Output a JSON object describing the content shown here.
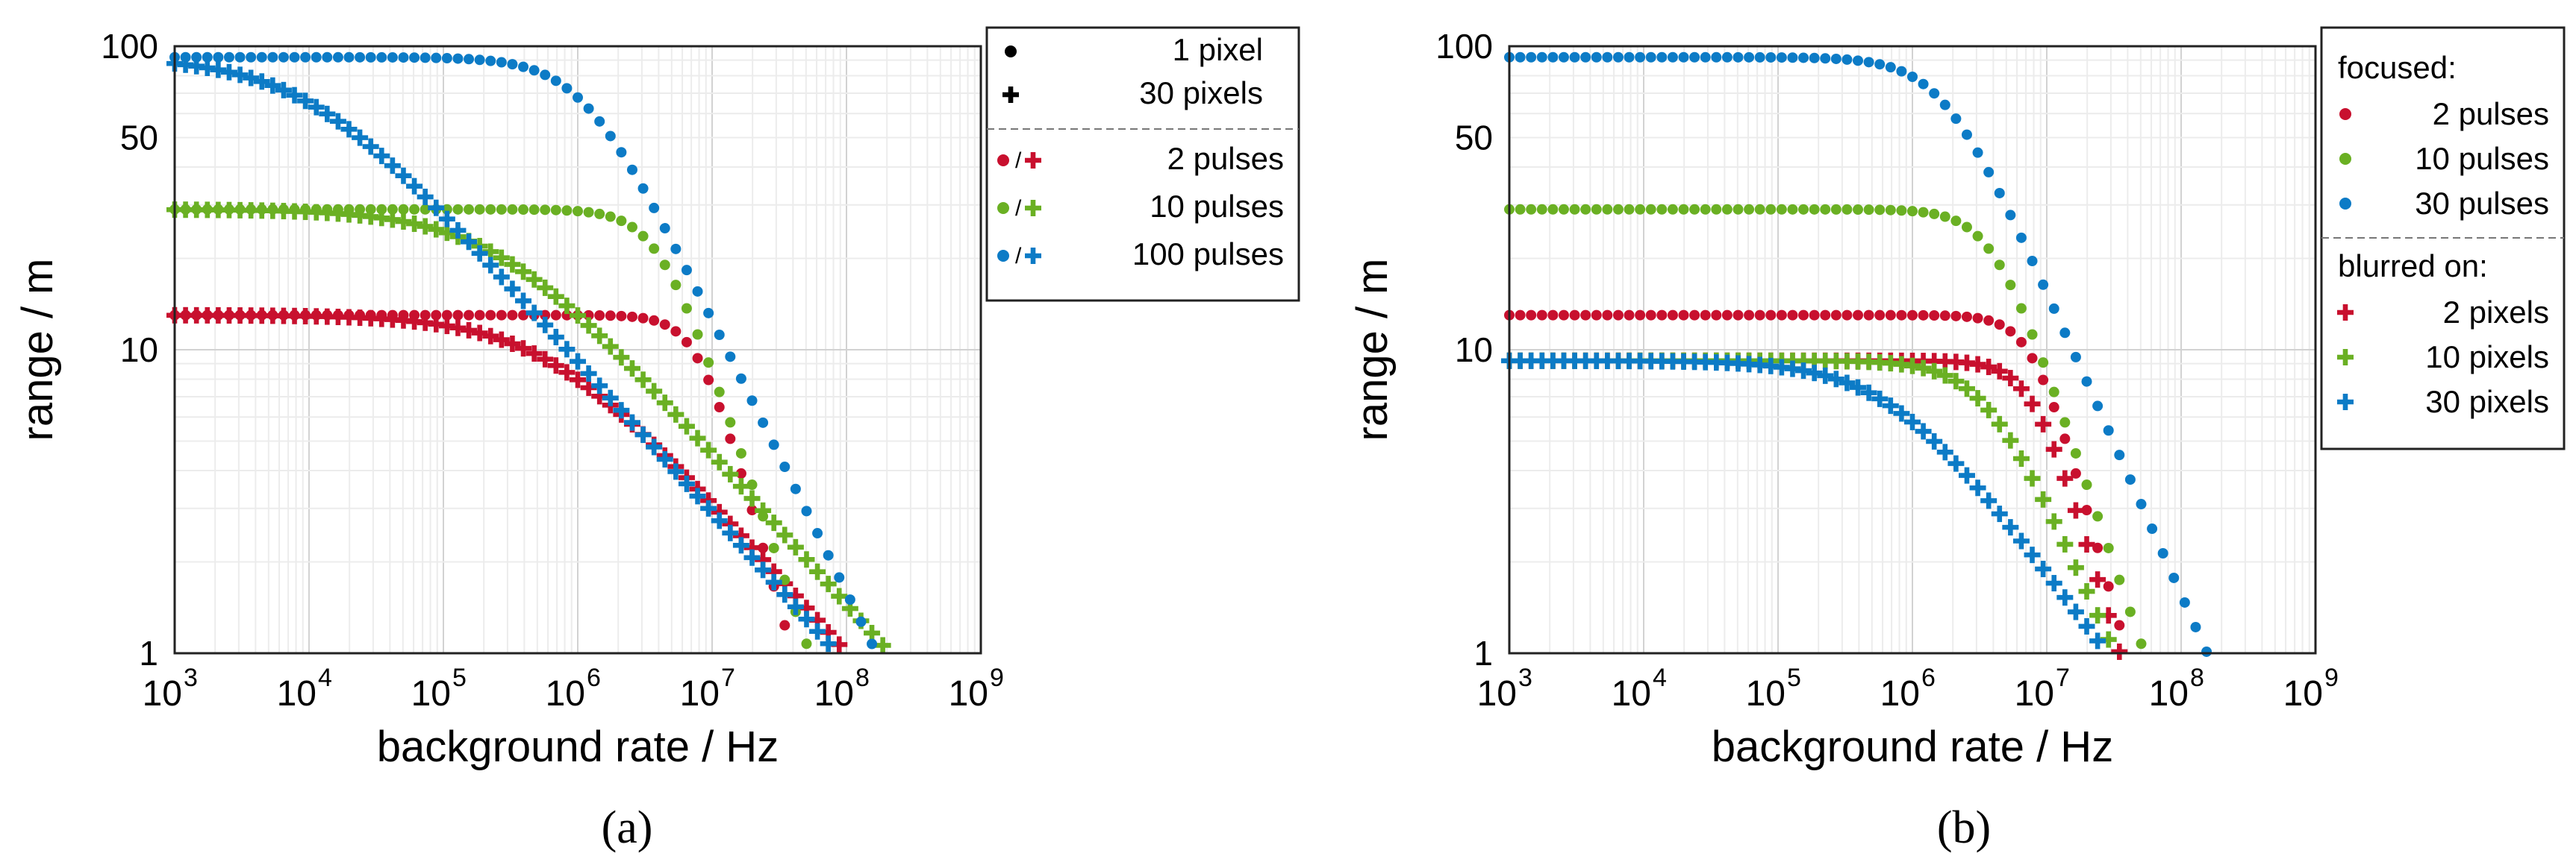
{
  "colors": {
    "red": "#c8102e",
    "green": "#6ab023",
    "blue": "#0c7bc6",
    "grid": "#dcdcdc",
    "axis": "#222222"
  },
  "chart_data": [
    {
      "id": "a",
      "panel_label": "(a)",
      "type": "scatter",
      "xscale": "log",
      "yscale": "log",
      "xlabel": "background rate / Hz",
      "ylabel": "range / m",
      "xlim": [
        1000,
        1000000000
      ],
      "ylim": [
        1,
        100
      ],
      "xtick_exponents": [
        "3",
        "4",
        "5",
        "6",
        "7",
        "8",
        "9"
      ],
      "ytick_labels": [
        "1",
        "10",
        "50",
        "100"
      ],
      "ytick_values": [
        1,
        10,
        50,
        100
      ],
      "grid": true,
      "legend": {
        "position": "outside-right",
        "marker_entries": [
          {
            "marker": "dot",
            "label": "1 pixel"
          },
          {
            "marker": "plus",
            "label": "30 pixels"
          }
        ],
        "color_entries": [
          {
            "color": "red",
            "label": "2 pulses"
          },
          {
            "color": "green",
            "label": "10 pulses"
          },
          {
            "color": "blue",
            "label": "100 pulses"
          }
        ]
      },
      "series": [
        {
          "name": "1 pixel, 2 pulses",
          "marker": "dot",
          "color": "red",
          "plateau": 13,
          "knee": 8000000,
          "slope": 1.6,
          "xmax": 75000000
        },
        {
          "name": "30 pixels, 2 pulses",
          "marker": "plus",
          "color": "red",
          "plateau": 13,
          "knee": 600000,
          "slope": 0.5,
          "xmax": 230000000
        },
        {
          "name": "1 pixel, 10 pulses",
          "marker": "dot",
          "color": "green",
          "plateau": 29,
          "knee": 4000000,
          "slope": 1.3,
          "xmax": 90000000
        },
        {
          "name": "30 pixels, 10 pulses",
          "marker": "plus",
          "color": "green",
          "plateau": 29,
          "knee": 250000,
          "slope": 0.5,
          "xmax": 320000000
        },
        {
          "name": "1 pixel, 100 pulses",
          "marker": "dot",
          "color": "blue",
          "plateau": 92,
          "knee": 1100000,
          "slope": 0.9,
          "xmax": 220000000
        },
        {
          "name": "30 pixels, 100 pulses",
          "marker": "plus",
          "color": "blue",
          "plateau": 92,
          "knee": 10000,
          "slope": 0.5,
          "xmax": 530000000
        }
      ]
    },
    {
      "id": "b",
      "panel_label": "(b)",
      "type": "scatter",
      "xscale": "log",
      "yscale": "log",
      "xlabel": "background rate / Hz",
      "ylabel": "range / m",
      "xlim": [
        1000,
        1000000000
      ],
      "ylim": [
        1,
        100
      ],
      "xtick_exponents": [
        "3",
        "4",
        "5",
        "6",
        "7",
        "8",
        "9"
      ],
      "ytick_labels": [
        "1",
        "10",
        "50",
        "100"
      ],
      "ytick_values": [
        1,
        10,
        50,
        100
      ],
      "grid": true,
      "legend": {
        "position": "outside-right",
        "group1_title": "focused:",
        "group1": [
          {
            "marker": "dot",
            "color": "red",
            "label": "2 pulses"
          },
          {
            "marker": "dot",
            "color": "green",
            "label": "10 pulses"
          },
          {
            "marker": "dot",
            "color": "blue",
            "label": "30 pulses"
          }
        ],
        "group2_title": "blurred on:",
        "group2": [
          {
            "marker": "plus",
            "color": "red",
            "label": "2 pixels"
          },
          {
            "marker": "plus",
            "color": "green",
            "label": "10 pixels"
          },
          {
            "marker": "plus",
            "color": "blue",
            "label": "30 pixels"
          }
        ]
      },
      "series": [
        {
          "name": "focused, 2 pulses",
          "marker": "dot",
          "color": "red",
          "plateau": 13,
          "knee": 8000000,
          "slope": 1.6,
          "xmax": 75000000
        },
        {
          "name": "focused, 10 pulses",
          "marker": "dot",
          "color": "green",
          "plateau": 29,
          "knee": 4000000,
          "slope": 1.3,
          "xmax": 90000000
        },
        {
          "name": "focused, 30 pulses",
          "marker": "dot",
          "color": "blue",
          "plateau": 92,
          "knee": 1700000,
          "slope": 1.0,
          "xmax": 260000000
        },
        {
          "name": "blurred on 2 pixels",
          "marker": "plus",
          "color": "red",
          "plateau": 9.2,
          "knee": 8000000,
          "slope": 1.5,
          "xmax": 75000000
        },
        {
          "name": "blurred on 10 pixels",
          "marker": "plus",
          "color": "green",
          "plateau": 9.2,
          "knee": 3500000,
          "slope": 1.0,
          "xmax": 110000000
        },
        {
          "name": "blurred on 30 pixels",
          "marker": "plus",
          "color": "blue",
          "plateau": 9.2,
          "knee": 700000,
          "slope": 0.6,
          "xmax": 220000000
        }
      ]
    }
  ]
}
